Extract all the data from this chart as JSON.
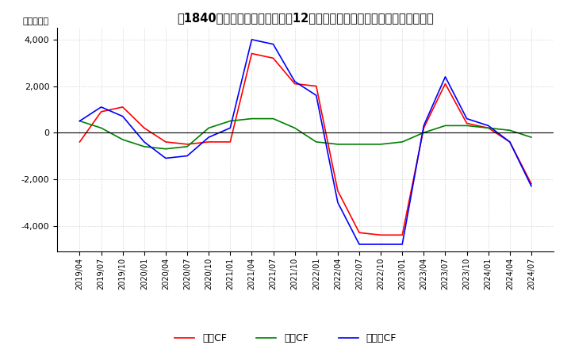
{
  "title": "　1840］　キャッシュフローの12か月移動合計の対前年同期増減額の推移",
  "ylabel": "（百万円）",
  "x_labels": [
    "2019/04",
    "2019/07",
    "2019/10",
    "2020/01",
    "2020/04",
    "2020/07",
    "2020/10",
    "2021/01",
    "2021/04",
    "2021/07",
    "2021/10",
    "2022/01",
    "2022/04",
    "2022/07",
    "2022/10",
    "2023/01",
    "2023/04",
    "2023/07",
    "2023/10",
    "2024/01",
    "2024/04",
    "2024/07"
  ],
  "operating_cf": [
    -400,
    900,
    1100,
    200,
    -400,
    -500,
    -400,
    -400,
    3400,
    3200,
    2100,
    2000,
    -2500,
    -4300,
    -4400,
    -4400,
    200,
    2100,
    400,
    200,
    -400,
    -2200
  ],
  "investing_cf": [
    500,
    200,
    -300,
    -600,
    -700,
    -600,
    200,
    500,
    600,
    600,
    200,
    -400,
    -500,
    -500,
    -500,
    -400,
    0,
    300,
    300,
    200,
    100,
    -200
  ],
  "free_cf": [
    500,
    1100,
    700,
    -400,
    -1100,
    -1000,
    -200,
    200,
    4000,
    3800,
    2200,
    1600,
    -3000,
    -4800,
    -4800,
    -4800,
    300,
    2400,
    600,
    300,
    -400,
    -2300
  ],
  "operating_color": "#ff0000",
  "investing_color": "#008000",
  "free_color": "#0000ff",
  "ylim": [
    -5100,
    4500
  ],
  "yticks": [
    -4000,
    -2000,
    0,
    2000,
    4000
  ],
  "background_color": "#ffffff",
  "grid_color": "#bbbbbb",
  "title_fontsize": 10.5,
  "legend_labels": [
    "営業CF",
    "投資CF",
    "フリーCF"
  ]
}
